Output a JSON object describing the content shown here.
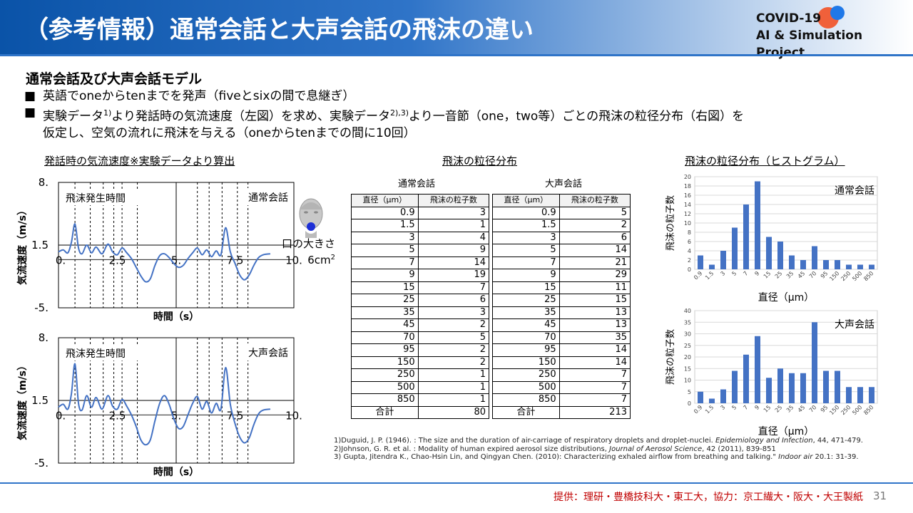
{
  "header": {
    "title": "（参考情報）通常会話と大声会話の飛沫の違い",
    "logo_line1": "COVID-19",
    "logo_line2": "AI & Simulation Project"
  },
  "section_title": "通常会話及び大声会話モデル",
  "bullets": [
    "■",
    "英語でoneからtenまでを発声（fiveとsixの間で息継ぎ）",
    "実験データ",
    "1)",
    "より発話時の気流速度（左図）を求め、実験データ",
    "2),3)",
    "より一音節（one，two等）ごとの飛沫の粒径分布（右図）を",
    "仮定し、空気の流れに飛沫を与える（oneからtenまでの間に10回）"
  ],
  "airflow": {
    "title": "発話時の気流速度※実験データより算出",
    "ylabel": "気流速度（m/s）",
    "xlabel": "時間（s）",
    "annotation": "飛沫発生時間",
    "ytick_labels": [
      "8.",
      "1.5",
      "-5."
    ],
    "xtick_labels": [
      "0.",
      "2.5",
      "5.",
      "7.5",
      "10."
    ],
    "mouth_line1": "口の大きさ",
    "mouth_line2": "6cm",
    "mouth_sup": "2"
  },
  "chart_data": [
    {
      "type": "line",
      "title": "",
      "legend": "通常会話",
      "xlabel": "時間（s）",
      "ylabel": "気流速度（m/s）",
      "xlim": [
        0,
        10
      ],
      "ylim": [
        -5,
        8
      ],
      "event_times": [
        0.7,
        1.35,
        1.9,
        2.35,
        2.7,
        3.35,
        5.9,
        6.4,
        6.95,
        7.6,
        8.05
      ],
      "x": [
        0,
        0.2,
        0.4,
        0.55,
        0.7,
        0.85,
        1.0,
        1.2,
        1.4,
        1.6,
        1.85,
        2.1,
        2.3,
        2.5,
        2.7,
        2.9,
        3.1,
        3.3,
        3.5,
        3.7,
        3.9,
        4.1,
        4.3,
        4.5,
        4.7,
        4.9,
        5.1,
        5.3,
        5.5,
        5.7,
        5.9,
        6.1,
        6.3,
        6.5,
        6.7,
        6.9,
        7.1,
        7.3,
        7.5,
        7.7,
        7.9,
        8.1,
        8.3,
        8.5,
        8.7,
        9.0
      ],
      "y": [
        0.8,
        1.0,
        0.7,
        1.8,
        3.7,
        1.2,
        0.6,
        1.5,
        0.7,
        1.3,
        0.6,
        1.6,
        0.8,
        0.5,
        1.2,
        0.7,
        0.1,
        -0.8,
        -1.7,
        -2.3,
        -2.0,
        -0.6,
        0.4,
        0.6,
        0.2,
        -0.4,
        -0.8,
        -0.6,
        0.1,
        0.7,
        1.2,
        0.5,
        1.0,
        0.3,
        0.9,
        0.5,
        3.3,
        0.8,
        -0.4,
        -1.6,
        -2.1,
        -1.6,
        -0.6,
        0.2,
        0.5,
        0.6
      ]
    },
    {
      "type": "line",
      "title": "",
      "legend": "大声会話",
      "xlabel": "時間（s）",
      "ylabel": "気流速度（m/s）",
      "xlim": [
        0,
        10
      ],
      "ylim": [
        -5,
        8
      ],
      "event_times": [
        0.7,
        1.35,
        1.9,
        2.35,
        2.7,
        3.35,
        5.9,
        6.4,
        6.95,
        7.6,
        8.05
      ],
      "x": [
        0,
        0.2,
        0.4,
        0.55,
        0.7,
        0.85,
        1.0,
        1.2,
        1.4,
        1.6,
        1.85,
        2.1,
        2.3,
        2.5,
        2.7,
        2.9,
        3.1,
        3.3,
        3.5,
        3.7,
        3.9,
        4.1,
        4.3,
        4.5,
        4.7,
        4.9,
        5.1,
        5.3,
        5.5,
        5.7,
        5.9,
        6.1,
        6.3,
        6.5,
        6.7,
        6.9,
        7.1,
        7.3,
        7.5,
        7.7,
        7.9,
        8.1,
        8.3,
        8.5,
        8.7,
        9.0
      ],
      "y": [
        0.8,
        1.1,
        0.6,
        2.2,
        5.3,
        1.2,
        0.5,
        2.0,
        0.8,
        1.8,
        0.6,
        2.0,
        0.9,
        0.6,
        1.6,
        0.9,
        0.0,
        -1.2,
        -2.6,
        -3.1,
        -2.6,
        -0.6,
        1.2,
        2.0,
        1.1,
        -0.4,
        -1.4,
        -1.2,
        0.0,
        1.2,
        1.9,
        0.6,
        1.4,
        0.2,
        1.2,
        0.6,
        4.9,
        1.1,
        -0.9,
        -2.3,
        -2.9,
        -2.4,
        -1.0,
        0.1,
        0.5,
        0.6
      ]
    },
    {
      "type": "table",
      "title": "飛沫の粒径分布",
      "tables": [
        {
          "name": "通常会話",
          "columns": [
            "直径（μm）",
            "飛沫の粒子数"
          ],
          "rows": [
            [
              "0.9",
              "3"
            ],
            [
              "1.5",
              "1"
            ],
            [
              "3",
              "4"
            ],
            [
              "5",
              "9"
            ],
            [
              "7",
              "14"
            ],
            [
              "9",
              "19"
            ],
            [
              "15",
              "7"
            ],
            [
              "25",
              "6"
            ],
            [
              "35",
              "3"
            ],
            [
              "45",
              "2"
            ],
            [
              "70",
              "5"
            ],
            [
              "95",
              "2"
            ],
            [
              "150",
              "2"
            ],
            [
              "250",
              "1"
            ],
            [
              "500",
              "1"
            ],
            [
              "850",
              "1"
            ]
          ],
          "total_label": "合計",
          "total": "80"
        },
        {
          "name": "大声会話",
          "columns": [
            "直径（μm）",
            "飛沫の粒子数"
          ],
          "rows": [
            [
              "0.9",
              "5"
            ],
            [
              "1.5",
              "2"
            ],
            [
              "3",
              "6"
            ],
            [
              "5",
              "14"
            ],
            [
              "7",
              "21"
            ],
            [
              "9",
              "29"
            ],
            [
              "15",
              "11"
            ],
            [
              "25",
              "15"
            ],
            [
              "35",
              "13"
            ],
            [
              "45",
              "13"
            ],
            [
              "70",
              "35"
            ],
            [
              "95",
              "14"
            ],
            [
              "150",
              "14"
            ],
            [
              "250",
              "7"
            ],
            [
              "500",
              "7"
            ],
            [
              "850",
              "7"
            ]
          ],
          "total_label": "合計",
          "total": "213"
        }
      ]
    },
    {
      "type": "bar",
      "title": "飛沫の粒径分布（ヒストグラム）",
      "legend": "通常会話",
      "xlabel": "直径（μm）",
      "ylabel": "飛沫の粒子数",
      "ylim": [
        0,
        20
      ],
      "yticks": [
        "0",
        "2",
        "4",
        "6",
        "8",
        "10",
        "12",
        "14",
        "16",
        "18",
        "20"
      ],
      "categories": [
        "0.9",
        "1.5",
        "3",
        "5",
        "7",
        "9",
        "15",
        "25",
        "35",
        "45",
        "70",
        "95",
        "150",
        "250",
        "500",
        "850"
      ],
      "values": [
        3,
        1,
        4,
        9,
        14,
        19,
        7,
        6,
        3,
        2,
        5,
        2,
        2,
        1,
        1,
        1
      ],
      "color": "#4472c4"
    },
    {
      "type": "bar",
      "legend": "大声会話",
      "xlabel": "直径（μm）",
      "ylabel": "飛沫の粒子数",
      "ylim": [
        0,
        40
      ],
      "yticks": [
        "0",
        "5",
        "10",
        "15",
        "20",
        "25",
        "30",
        "35",
        "40"
      ],
      "categories": [
        "0.9",
        "1.5",
        "3",
        "5",
        "7",
        "9",
        "15",
        "25",
        "35",
        "45",
        "70",
        "95",
        "150",
        "250",
        "500",
        "850"
      ],
      "values": [
        5,
        2,
        6,
        14,
        21,
        29,
        11,
        15,
        13,
        13,
        35,
        14,
        14,
        7,
        7,
        7
      ],
      "color": "#4472c4"
    }
  ],
  "references": [
    "1)Duguid, J. P. (1946). : The size and the duration of air-carriage of respiratory droplets and droplet-nuclei. ",
    "Epidemiology and Infection",
    ", 44, 471-479.",
    "2)Johnson, G. R. et al. : Modality of human expired aerosol size distributions, ",
    "Journal of Aerosol Science",
    ", 42 (2011), 839-851",
    "3) Gupta, Jitendra K., Chao-Hsin Lin, and Qingyan Chen. (2010): Characterizing exhaled airflow from breathing and talking.\" ",
    "Indoor air",
    " 20.1: 31-39."
  ],
  "footer": "提供：理研・豊橋技科大・東工大，協力：京工繊大・阪大・大王製紙",
  "page_number": "31",
  "colors": {
    "accent": "#2f74c8",
    "series": "#4472c4",
    "footer": "#c00000"
  }
}
